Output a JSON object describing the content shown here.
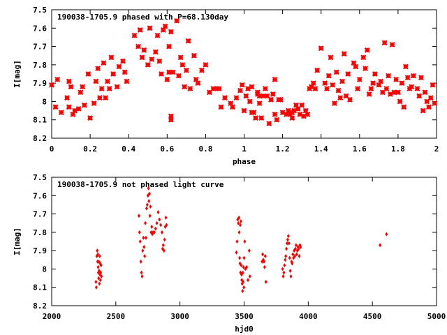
{
  "colors": {
    "points": "#ff0000",
    "axis": "#000000",
    "background": "#ffffff"
  },
  "chart_data": [
    {
      "type": "scatter",
      "title": "190038-1705.9 phased with P=68.130day",
      "xlabel": "phase",
      "ylabel": "I[mag]",
      "xlim": [
        0,
        2
      ],
      "ylim": [
        7.5,
        8.2
      ],
      "y_inverted": true,
      "marker": "asterisk",
      "grid": false,
      "xticks": [
        0,
        0.2,
        0.4,
        0.6,
        0.8,
        1,
        1.2,
        1.4,
        1.6,
        1.8,
        2
      ],
      "xtick_labels": [
        "0",
        "0.2",
        "0.4",
        "0.6",
        "0.8",
        "1",
        "1.2",
        "1.4",
        "1.6",
        "1.8",
        "2"
      ],
      "yticks": [
        7.5,
        7.6,
        7.7,
        7.8,
        7.9,
        8.0,
        8.1,
        8.2
      ],
      "ytick_labels": [
        "7.5",
        "7.6",
        "7.7",
        "7.8",
        "7.9",
        "8",
        "8.1",
        "8.2"
      ],
      "points": [
        [
          0.0,
          7.91
        ],
        [
          0.02,
          8.03
        ],
        [
          0.03,
          7.88
        ],
        [
          0.05,
          8.06
        ],
        [
          0.08,
          7.98
        ],
        [
          0.09,
          7.89
        ],
        [
          0.09,
          8.03
        ],
        [
          0.1,
          7.92
        ],
        [
          0.11,
          8.07
        ],
        [
          0.12,
          8.05
        ],
        [
          0.14,
          8.04
        ],
        [
          0.15,
          7.95
        ],
        [
          0.16,
          7.92
        ],
        [
          0.17,
          8.02
        ],
        [
          0.19,
          7.85
        ],
        [
          0.2,
          8.09
        ],
        [
          0.22,
          8.01
        ],
        [
          0.23,
          7.89
        ],
        [
          0.24,
          7.82
        ],
        [
          0.25,
          7.98
        ],
        [
          0.26,
          7.93
        ],
        [
          0.27,
          7.79
        ],
        [
          0.28,
          7.98
        ],
        [
          0.29,
          7.89
        ],
        [
          0.3,
          7.93
        ],
        [
          0.31,
          7.76
        ],
        [
          0.32,
          7.85
        ],
        [
          0.34,
          7.92
        ],
        [
          0.35,
          7.81
        ],
        [
          0.37,
          7.78
        ],
        [
          0.38,
          7.84
        ],
        [
          0.39,
          7.89
        ],
        [
          0.43,
          7.64
        ],
        [
          0.45,
          7.7
        ],
        [
          0.46,
          7.61
        ],
        [
          0.47,
          7.76
        ],
        [
          0.48,
          7.72
        ],
        [
          0.5,
          7.8
        ],
        [
          0.51,
          7.6
        ],
        [
          0.52,
          7.77
        ],
        [
          0.54,
          7.73
        ],
        [
          0.55,
          7.64
        ],
        [
          0.56,
          7.78
        ],
        [
          0.57,
          7.85
        ],
        [
          0.58,
          7.61
        ],
        [
          0.59,
          7.59
        ],
        [
          0.6,
          7.88
        ],
        [
          0.61,
          7.7
        ],
        [
          0.61,
          7.84
        ],
        [
          0.62,
          7.62
        ],
        [
          0.62,
          8.08
        ],
        [
          0.62,
          8.1
        ],
        [
          0.63,
          7.84
        ],
        [
          0.65,
          7.56
        ],
        [
          0.66,
          7.86
        ],
        [
          0.67,
          7.76
        ],
        [
          0.68,
          7.8
        ],
        [
          0.69,
          7.92
        ],
        [
          0.7,
          7.83
        ],
        [
          0.71,
          7.67
        ],
        [
          0.72,
          7.93
        ],
        [
          0.74,
          7.75
        ],
        [
          0.75,
          7.88
        ],
        [
          0.76,
          7.9
        ],
        [
          0.78,
          7.83
        ],
        [
          0.8,
          7.8
        ],
        [
          0.82,
          7.95
        ],
        [
          0.84,
          7.93
        ],
        [
          0.86,
          7.93
        ],
        [
          0.87,
          7.93
        ],
        [
          0.88,
          8.03
        ],
        [
          0.9,
          7.98
        ],
        [
          0.93,
          8.01
        ],
        [
          0.94,
          8.03
        ],
        [
          0.96,
          7.98
        ],
        [
          0.98,
          7.94
        ],
        [
          0.99,
          7.91
        ],
        [
          1.0,
          8.05
        ],
        [
          1.01,
          7.97
        ],
        [
          1.02,
          7.93
        ],
        [
          1.03,
          8.0
        ],
        [
          1.04,
          7.92
        ],
        [
          1.04,
          8.06
        ],
        [
          1.05,
          8.06
        ],
        [
          1.06,
          8.09
        ],
        [
          1.07,
          7.96
        ],
        [
          1.07,
          7.95
        ],
        [
          1.08,
          8.01
        ],
        [
          1.08,
          7.97
        ],
        [
          1.09,
          8.09
        ],
        [
          1.1,
          7.97
        ],
        [
          1.11,
          7.93
        ],
        [
          1.12,
          7.97
        ],
        [
          1.13,
          8.12
        ],
        [
          1.14,
          7.99
        ],
        [
          1.15,
          7.96
        ],
        [
          1.16,
          8.07
        ],
        [
          1.16,
          7.88
        ],
        [
          1.17,
          8.1
        ],
        [
          1.18,
          7.99
        ],
        [
          1.19,
          7.99
        ],
        [
          1.2,
          8.06
        ],
        [
          1.22,
          8.07
        ],
        [
          1.23,
          8.05
        ],
        [
          1.24,
          8.07
        ],
        [
          1.25,
          8.06
        ],
        [
          1.25,
          8.09
        ],
        [
          1.26,
          8.05
        ],
        [
          1.27,
          8.02
        ],
        [
          1.28,
          8.04
        ],
        [
          1.29,
          8.07
        ],
        [
          1.3,
          8.02
        ],
        [
          1.31,
          8.08
        ],
        [
          1.32,
          8.05
        ],
        [
          1.33,
          8.07
        ],
        [
          1.34,
          7.93
        ],
        [
          1.35,
          7.92
        ],
        [
          1.36,
          7.9
        ],
        [
          1.37,
          7.93
        ],
        [
          1.38,
          7.83
        ],
        [
          1.4,
          7.71
        ],
        [
          1.42,
          7.9
        ],
        [
          1.43,
          7.93
        ],
        [
          1.44,
          7.86
        ],
        [
          1.45,
          7.76
        ],
        [
          1.46,
          7.91
        ],
        [
          1.47,
          8.01
        ],
        [
          1.48,
          7.84
        ],
        [
          1.49,
          7.94
        ],
        [
          1.5,
          7.98
        ],
        [
          1.51,
          7.89
        ],
        [
          1.52,
          7.74
        ],
        [
          1.53,
          7.97
        ],
        [
          1.54,
          7.85
        ],
        [
          1.55,
          7.99
        ],
        [
          1.57,
          7.79
        ],
        [
          1.58,
          7.81
        ],
        [
          1.59,
          7.93
        ],
        [
          1.6,
          7.88
        ],
        [
          1.62,
          7.76
        ],
        [
          1.63,
          7.82
        ],
        [
          1.64,
          7.72
        ],
        [
          1.65,
          7.96
        ],
        [
          1.66,
          7.93
        ],
        [
          1.67,
          7.9
        ],
        [
          1.68,
          7.85
        ],
        [
          1.7,
          7.91
        ],
        [
          1.71,
          7.89
        ],
        [
          1.72,
          7.95
        ],
        [
          1.73,
          7.68
        ],
        [
          1.74,
          7.93
        ],
        [
          1.75,
          7.86
        ],
        [
          1.76,
          7.96
        ],
        [
          1.77,
          7.69
        ],
        [
          1.78,
          7.95
        ],
        [
          1.79,
          7.88
        ],
        [
          1.8,
          7.95
        ],
        [
          1.81,
          8.0
        ],
        [
          1.82,
          7.9
        ],
        [
          1.83,
          8.03
        ],
        [
          1.84,
          7.81
        ],
        [
          1.85,
          7.87
        ],
        [
          1.86,
          7.93
        ],
        [
          1.87,
          7.92
        ],
        [
          1.88,
          7.86
        ],
        [
          1.9,
          7.93
        ],
        [
          1.91,
          7.97
        ],
        [
          1.92,
          7.87
        ],
        [
          1.93,
          8.05
        ],
        [
          1.94,
          7.95
        ],
        [
          1.95,
          8.0
        ],
        [
          1.96,
          8.03
        ],
        [
          1.97,
          7.98
        ],
        [
          1.98,
          7.91
        ],
        [
          1.99,
          8.01
        ]
      ]
    },
    {
      "type": "scatter",
      "title": "190038-1705.9 not phased light curve",
      "xlabel": "hjd0",
      "ylabel": "I[mag]",
      "xlim": [
        2000,
        5000
      ],
      "ylim": [
        7.5,
        8.2
      ],
      "y_inverted": true,
      "marker": "diamond",
      "grid": false,
      "xticks": [
        2000,
        2500,
        3000,
        3500,
        4000,
        4500,
        5000
      ],
      "xtick_labels": [
        "2000",
        "2500",
        "3000",
        "3500",
        "4000",
        "4500",
        "5000"
      ],
      "yticks": [
        7.5,
        7.6,
        7.7,
        7.8,
        7.9,
        8.0,
        8.1,
        8.2
      ],
      "ytick_labels": [
        "7.5",
        "7.6",
        "7.7",
        "7.8",
        "7.9",
        "8",
        "8.1",
        "8.2"
      ],
      "points": [
        [
          2345,
          8.07
        ],
        [
          2348,
          8.1
        ],
        [
          2352,
          7.93
        ],
        [
          2355,
          7.9
        ],
        [
          2358,
          7.96
        ],
        [
          2360,
          7.92
        ],
        [
          2362,
          7.99
        ],
        [
          2364,
          8.02
        ],
        [
          2366,
          8.05
        ],
        [
          2368,
          7.96
        ],
        [
          2370,
          8.01
        ],
        [
          2372,
          8.08
        ],
        [
          2374,
          7.93
        ],
        [
          2376,
          8.03
        ],
        [
          2378,
          7.97
        ],
        [
          2380,
          8.06
        ],
        [
          2382,
          8.02
        ],
        [
          2385,
          7.98
        ],
        [
          2388,
          8.04
        ],
        [
          2680,
          7.71
        ],
        [
          2685,
          7.8
        ],
        [
          2690,
          7.85
        ],
        [
          2695,
          7.96
        ],
        [
          2700,
          8.02
        ],
        [
          2705,
          8.04
        ],
        [
          2710,
          7.9
        ],
        [
          2715,
          7.83
        ],
        [
          2720,
          7.88
        ],
        [
          2725,
          7.93
        ],
        [
          2730,
          7.75
        ],
        [
          2735,
          7.83
        ],
        [
          2740,
          7.67
        ],
        [
          2745,
          7.65
        ],
        [
          2750,
          7.6
        ],
        [
          2755,
          7.56
        ],
        [
          2758,
          7.63
        ],
        [
          2762,
          7.59
        ],
        [
          2766,
          7.71
        ],
        [
          2770,
          7.66
        ],
        [
          2775,
          7.8
        ],
        [
          2780,
          7.77
        ],
        [
          2785,
          7.81
        ],
        [
          2790,
          7.8
        ],
        [
          2800,
          7.8
        ],
        [
          2810,
          7.78
        ],
        [
          2820,
          7.75
        ],
        [
          2830,
          7.69
        ],
        [
          2840,
          7.73
        ],
        [
          2850,
          7.76
        ],
        [
          2860,
          7.8
        ],
        [
          2865,
          7.89
        ],
        [
          2870,
          7.87
        ],
        [
          2875,
          7.9
        ],
        [
          2880,
          7.84
        ],
        [
          2885,
          7.77
        ],
        [
          2890,
          7.72
        ],
        [
          2895,
          7.76
        ],
        [
          3440,
          7.91
        ],
        [
          3445,
          7.85
        ],
        [
          3450,
          7.73
        ],
        [
          3455,
          7.75
        ],
        [
          3460,
          7.72
        ],
        [
          3462,
          7.8
        ],
        [
          3465,
          7.94
        ],
        [
          3468,
          7.97
        ],
        [
          3470,
          7.76
        ],
        [
          3472,
          8.02
        ],
        [
          3475,
          7.74
        ],
        [
          3478,
          7.98
        ],
        [
          3480,
          8.03
        ],
        [
          3482,
          8.06
        ],
        [
          3485,
          8.08
        ],
        [
          3488,
          8.12
        ],
        [
          3490,
          8.02
        ],
        [
          3492,
          8.07
        ],
        [
          3495,
          7.99
        ],
        [
          3498,
          8.1
        ],
        [
          3500,
          7.94
        ],
        [
          3505,
          7.85
        ],
        [
          3510,
          8.0
        ],
        [
          3520,
          7.99
        ],
        [
          3530,
          8.06
        ],
        [
          3540,
          7.9
        ],
        [
          3545,
          8.04
        ],
        [
          3640,
          7.96
        ],
        [
          3645,
          7.92
        ],
        [
          3650,
          7.95
        ],
        [
          3655,
          7.96
        ],
        [
          3660,
          7.99
        ],
        [
          3665,
          7.93
        ],
        [
          3670,
          8.07
        ],
        [
          3800,
          8.0
        ],
        [
          3805,
          8.04
        ],
        [
          3810,
          8.02
        ],
        [
          3815,
          7.98
        ],
        [
          3820,
          7.95
        ],
        [
          3825,
          7.93
        ],
        [
          3830,
          7.89
        ],
        [
          3835,
          7.86
        ],
        [
          3840,
          7.84
        ],
        [
          3845,
          7.82
        ],
        [
          3850,
          7.86
        ],
        [
          3855,
          7.94
        ],
        [
          3860,
          8.01
        ],
        [
          3865,
          8.04
        ],
        [
          3870,
          7.96
        ],
        [
          3875,
          7.97
        ],
        [
          3880,
          7.92
        ],
        [
          3885,
          7.94
        ],
        [
          3890,
          7.9
        ],
        [
          3895,
          7.93
        ],
        [
          3900,
          7.89
        ],
        [
          3905,
          7.87
        ],
        [
          3910,
          7.92
        ],
        [
          3915,
          7.9
        ],
        [
          3920,
          7.88
        ],
        [
          3925,
          7.89
        ],
        [
          3930,
          7.93
        ],
        [
          3935,
          7.87
        ],
        [
          3940,
          7.88
        ],
        [
          4560,
          7.87
        ],
        [
          4610,
          7.81
        ]
      ]
    }
  ]
}
